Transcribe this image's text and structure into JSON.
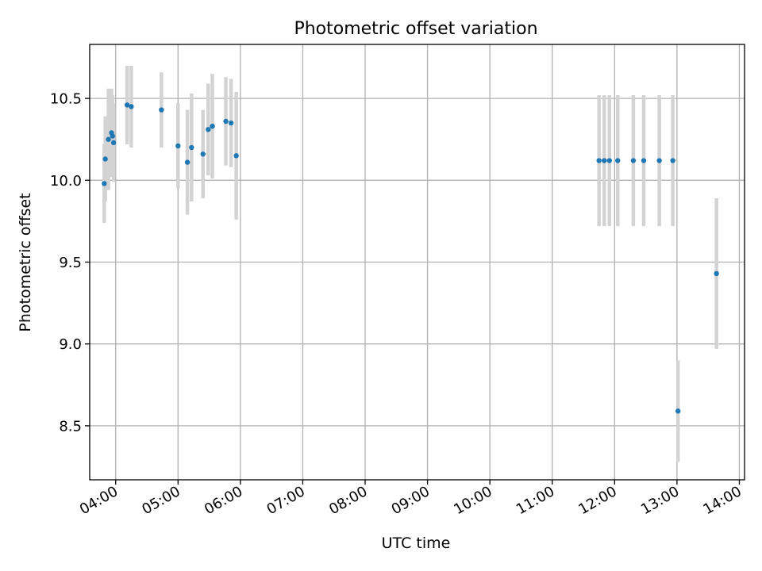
{
  "chart_data": {
    "type": "scatter",
    "title": "Photometric offset variation",
    "xlabel": "UTC time",
    "ylabel": "Photometric offset",
    "x_unit": "time (HH:MM, UTC)",
    "xlim": [
      "03:35",
      "14:05"
    ],
    "ylim": [
      8.17,
      10.83
    ],
    "x_ticks": [
      "04:00",
      "05:00",
      "06:00",
      "07:00",
      "08:00",
      "09:00",
      "10:00",
      "11:00",
      "12:00",
      "13:00",
      "14:00"
    ],
    "y_ticks": [
      8.5,
      9.0,
      9.5,
      10.0,
      10.5
    ],
    "y_tick_labels": [
      "8.5",
      "9.0",
      "9.5",
      "10.0",
      "10.5"
    ],
    "grid": true,
    "legend": "none",
    "colors": {
      "point": "#1f77b4",
      "errorbar": "#d3d3d3",
      "grid": "#b0b0b0"
    },
    "series": [
      {
        "points": [
          {
            "x": "03:49",
            "y": 9.98,
            "err": 0.24
          },
          {
            "x": "03:50",
            "y": 10.13,
            "err": 0.26
          },
          {
            "x": "03:53",
            "y": 10.25,
            "err": 0.31
          },
          {
            "x": "03:56",
            "y": 10.29,
            "err": 0.27
          },
          {
            "x": "03:57",
            "y": 10.27,
            "err": 0.25
          },
          {
            "x": "03:58",
            "y": 10.23,
            "err": 0.24
          },
          {
            "x": "04:11",
            "y": 10.46,
            "err": 0.24
          },
          {
            "x": "04:15",
            "y": 10.45,
            "err": 0.25
          },
          {
            "x": "04:44",
            "y": 10.43,
            "err": 0.23
          },
          {
            "x": "05:00",
            "y": 10.21,
            "err": 0.26
          },
          {
            "x": "05:09",
            "y": 10.11,
            "err": 0.32
          },
          {
            "x": "05:13",
            "y": 10.2,
            "err": 0.33
          },
          {
            "x": "05:24",
            "y": 10.16,
            "err": 0.27
          },
          {
            "x": "05:29",
            "y": 10.31,
            "err": 0.28
          },
          {
            "x": "05:33",
            "y": 10.33,
            "err": 0.32
          },
          {
            "x": "05:46",
            "y": 10.36,
            "err": 0.27
          },
          {
            "x": "05:51",
            "y": 10.35,
            "err": 0.27
          },
          {
            "x": "05:56",
            "y": 10.15,
            "err": 0.39
          },
          {
            "x": "11:45",
            "y": 10.12,
            "err": 0.4
          },
          {
            "x": "11:50",
            "y": 10.12,
            "err": 0.4
          },
          {
            "x": "11:55",
            "y": 10.12,
            "err": 0.4
          },
          {
            "x": "12:03",
            "y": 10.12,
            "err": 0.4
          },
          {
            "x": "12:18",
            "y": 10.12,
            "err": 0.4
          },
          {
            "x": "12:28",
            "y": 10.12,
            "err": 0.4
          },
          {
            "x": "12:43",
            "y": 10.12,
            "err": 0.4
          },
          {
            "x": "12:56",
            "y": 10.12,
            "err": 0.4
          },
          {
            "x": "13:01",
            "y": 8.59,
            "err": 0.31
          },
          {
            "x": "13:38",
            "y": 9.43,
            "err": 0.46
          }
        ]
      }
    ]
  }
}
